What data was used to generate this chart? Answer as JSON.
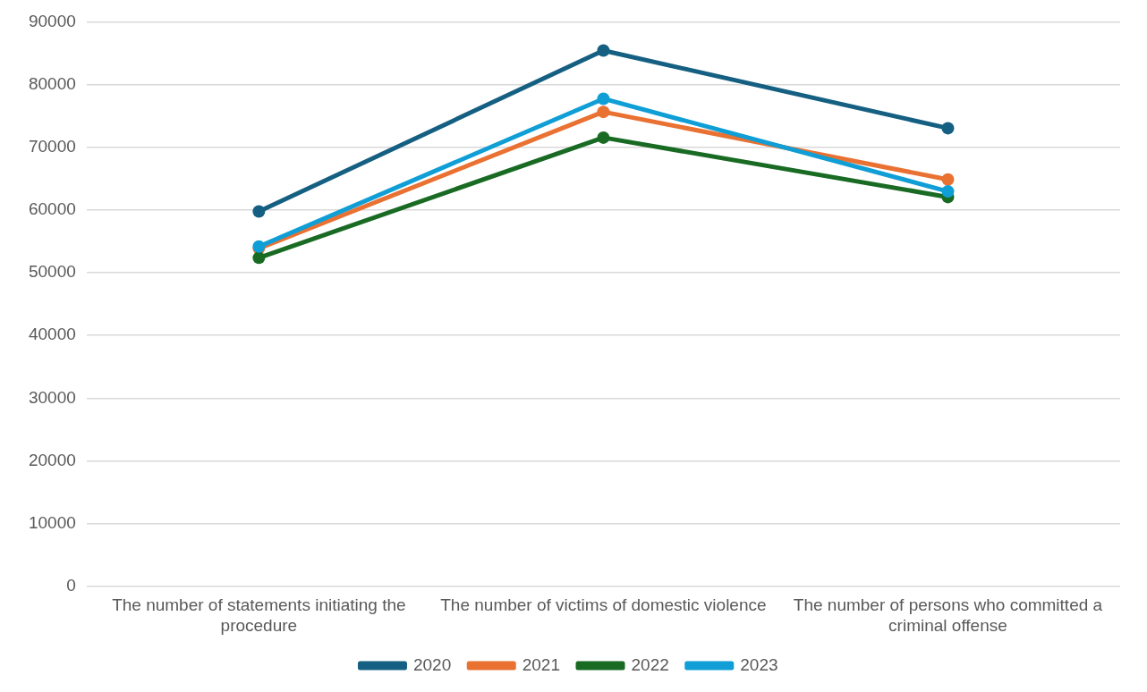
{
  "chart_data": {
    "type": "line",
    "categories": [
      "The number of statements initiating the procedure",
      "The number of victims of domestic violence",
      "The number of persons who committed a criminal offense"
    ],
    "series": [
      {
        "name": "2020",
        "color": "#156082",
        "values": [
          59800,
          85500,
          73100
        ]
      },
      {
        "name": "2021",
        "color": "#e97132",
        "values": [
          53900,
          75700,
          64900
        ]
      },
      {
        "name": "2022",
        "color": "#196b24",
        "values": [
          52400,
          71600,
          62100
        ]
      },
      {
        "name": "2023",
        "color": "#0f9ed5",
        "values": [
          54200,
          77800,
          63000
        ]
      }
    ],
    "ylim": [
      0,
      90000
    ],
    "yticks": [
      0,
      10000,
      20000,
      30000,
      40000,
      50000,
      60000,
      70000,
      80000,
      90000
    ],
    "grid": "y",
    "legend": "bottom",
    "marker": "circle",
    "line_style": "solid"
  }
}
